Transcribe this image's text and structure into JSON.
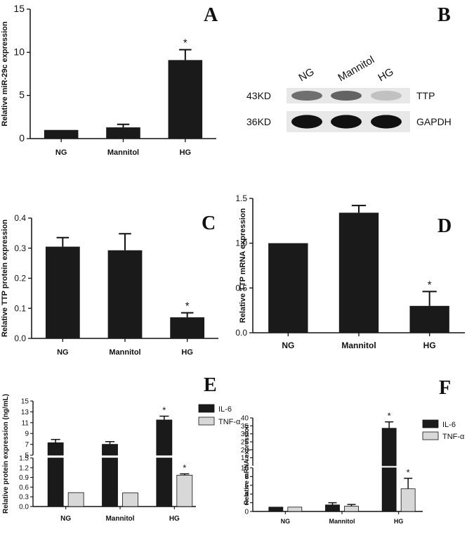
{
  "panels": {
    "A": "A",
    "B": "B",
    "C": "C",
    "D": "D",
    "E": "E",
    "F": "F"
  },
  "chart_data": [
    {
      "panel": "A",
      "type": "bar",
      "ylabel": "Relative miR-29c expression",
      "categories": [
        "NG",
        "Mannitol",
        "HG"
      ],
      "values": [
        1.0,
        1.3,
        9.1
      ],
      "errors": [
        0.0,
        0.35,
        1.2
      ],
      "significance": [
        "",
        "",
        "*"
      ],
      "ylim": [
        0,
        15
      ],
      "yticks": [
        "0",
        "5",
        "10",
        "15"
      ],
      "ytick_values": [
        0,
        5,
        10,
        15
      ],
      "bar_color": "#1a1a1a"
    },
    {
      "panel": "C",
      "type": "bar",
      "ylabel": "Relative TTP protein expression",
      "categories": [
        "NG",
        "Mannitol",
        "HG"
      ],
      "values": [
        0.305,
        0.293,
        0.07
      ],
      "errors": [
        0.03,
        0.055,
        0.015
      ],
      "significance": [
        "",
        "",
        "*"
      ],
      "ylim": [
        0,
        0.4
      ],
      "yticks": [
        "0.0",
        "0.1",
        "0.2",
        "0.3",
        "0.4"
      ],
      "ytick_values": [
        0,
        0.1,
        0.2,
        0.3,
        0.4
      ],
      "bar_color": "#1a1a1a"
    },
    {
      "panel": "D",
      "type": "bar",
      "ylabel": "Relative TTP mRNA expression",
      "categories": [
        "NG",
        "Mannitol",
        "HG"
      ],
      "values": [
        1.0,
        1.34,
        0.3
      ],
      "errors": [
        0.0,
        0.08,
        0.16
      ],
      "significance": [
        "",
        "",
        "*"
      ],
      "ylim": [
        0,
        1.5
      ],
      "yticks": [
        "0.0",
        "0.5",
        "1.0",
        "1.5"
      ],
      "ytick_values": [
        0,
        0.5,
        1.0,
        1.5
      ],
      "bar_color": "#1a1a1a"
    },
    {
      "panel": "E",
      "type": "bar",
      "ylabel": "Relative protein expression (ng/mL)",
      "categories": [
        "NG",
        "Mannitol",
        "HG"
      ],
      "series": [
        {
          "name": "IL-6",
          "values": [
            7.3,
            7.0,
            11.5
          ],
          "errors": [
            0.6,
            0.5,
            0.7
          ],
          "significance": [
            "",
            "",
            "*"
          ],
          "color": "#1a1a1a"
        },
        {
          "name": "TNF-α",
          "values": [
            0.43,
            0.42,
            0.97
          ],
          "errors": [
            0.0,
            0.0,
            0.04
          ],
          "significance": [
            "",
            "",
            "*"
          ],
          "color": "#d8d8d8"
        }
      ],
      "broken_axis": true,
      "lower_range": [
        0,
        1.5
      ],
      "lower_yticks": [
        "0.0",
        "0.3",
        "0.6",
        "0.9",
        "1.2",
        "1.5"
      ],
      "lower_ytick_values": [
        0,
        0.3,
        0.6,
        0.9,
        1.2,
        1.5
      ],
      "upper_range": [
        5,
        15
      ],
      "upper_yticks": [
        "5",
        "7",
        "9",
        "11",
        "13",
        "15"
      ],
      "upper_ytick_values": [
        5,
        7,
        9,
        11,
        13,
        15
      ],
      "legend_position": "top-right"
    },
    {
      "panel": "F",
      "type": "bar",
      "ylabel": "Relative mRNA expression",
      "categories": [
        "NG",
        "Mannitol",
        "HG"
      ],
      "series": [
        {
          "name": "IL-6",
          "values": [
            1.0,
            1.5,
            33.5
          ],
          "errors": [
            0.0,
            0.5,
            4.0
          ],
          "significance": [
            "",
            "",
            "*"
          ],
          "color": "#1a1a1a"
        },
        {
          "name": "TNF-α",
          "values": [
            1.0,
            1.2,
            5.2
          ],
          "errors": [
            0.0,
            0.4,
            2.4
          ],
          "significance": [
            "",
            "",
            "*"
          ],
          "color": "#d8d8d8"
        }
      ],
      "broken_axis": true,
      "lower_range": [
        0,
        10
      ],
      "lower_yticks": [
        "0",
        "2",
        "4",
        "6",
        "8",
        "10"
      ],
      "lower_ytick_values": [
        0,
        2,
        4,
        6,
        8,
        10
      ],
      "upper_range": [
        10,
        40
      ],
      "upper_yticks": [
        "15",
        "20",
        "25",
        "30",
        "35",
        "40"
      ],
      "upper_ytick_values": [
        15,
        20,
        25,
        30,
        35,
        40
      ],
      "legend_position": "top-right"
    }
  ],
  "western_blot": {
    "lanes": [
      "NG",
      "Mannitol",
      "HG"
    ],
    "rows": [
      {
        "weight": "43KD",
        "protein": "TTP",
        "intensity": [
          0.55,
          0.6,
          0.2
        ]
      },
      {
        "weight": "36KD",
        "protein": "GAPDH",
        "intensity": [
          0.95,
          0.95,
          0.95
        ]
      }
    ]
  }
}
